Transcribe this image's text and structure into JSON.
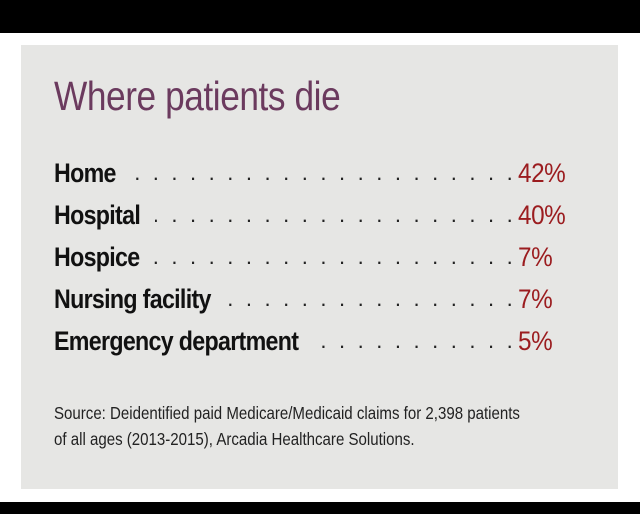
{
  "chart_data": {
    "type": "table",
    "title": "Where patients die",
    "categories": [
      "Home",
      "Hospital",
      "Hospice",
      "Nursing facility",
      "Emergency department"
    ],
    "values": [
      42,
      40,
      7,
      7,
      5
    ],
    "value_labels": [
      "42%",
      "40%",
      "7%",
      "7%",
      "5%"
    ],
    "unit": "%",
    "source_lines": [
      "Source: Deidentified paid Medicare/Medicaid claims for 2,398 patients",
      "of all ages (2013-2015), Arcadia Healthcare Solutions."
    ]
  },
  "colors": {
    "background_panel": "#e6e6e4",
    "frame_bars": "#000000",
    "title": "#6b3a5e",
    "labels": "#111111",
    "values": "#9b1c1f",
    "source": "#222222"
  }
}
